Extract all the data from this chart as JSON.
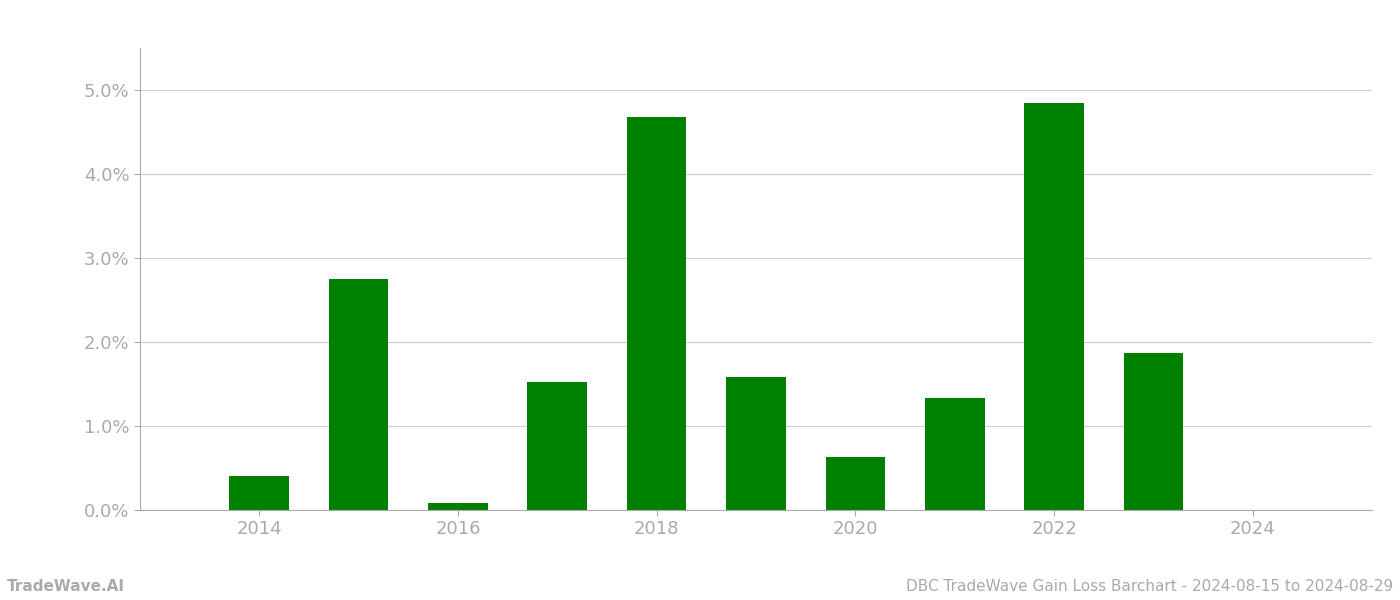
{
  "years": [
    2014,
    2015,
    2016,
    2017,
    2018,
    2019,
    2020,
    2021,
    2022,
    2023
  ],
  "values": [
    0.004,
    0.0275,
    0.0008,
    0.0152,
    0.0468,
    0.0158,
    0.0063,
    0.0133,
    0.0485,
    0.0187
  ],
  "bar_color": "#008000",
  "bar_width": 0.6,
  "ylim": [
    0,
    0.055
  ],
  "yticks": [
    0.0,
    0.01,
    0.02,
    0.03,
    0.04,
    0.05
  ],
  "xtick_labels": [
    "2014",
    "2016",
    "2018",
    "2020",
    "2022",
    "2024"
  ],
  "xtick_positions": [
    2014,
    2016,
    2018,
    2020,
    2022,
    2024
  ],
  "footer_left": "TradeWave.AI",
  "footer_right": "DBC TradeWave Gain Loss Barchart - 2024-08-15 to 2024-08-29",
  "footer_color": "#aaaaaa",
  "footer_fontsize": 11,
  "grid_color": "#cccccc",
  "grid_linewidth": 0.8,
  "background_color": "#ffffff",
  "axis_label_color": "#aaaaaa",
  "tick_label_fontsize": 13,
  "xlim_left": 2012.8,
  "xlim_right": 2025.2
}
